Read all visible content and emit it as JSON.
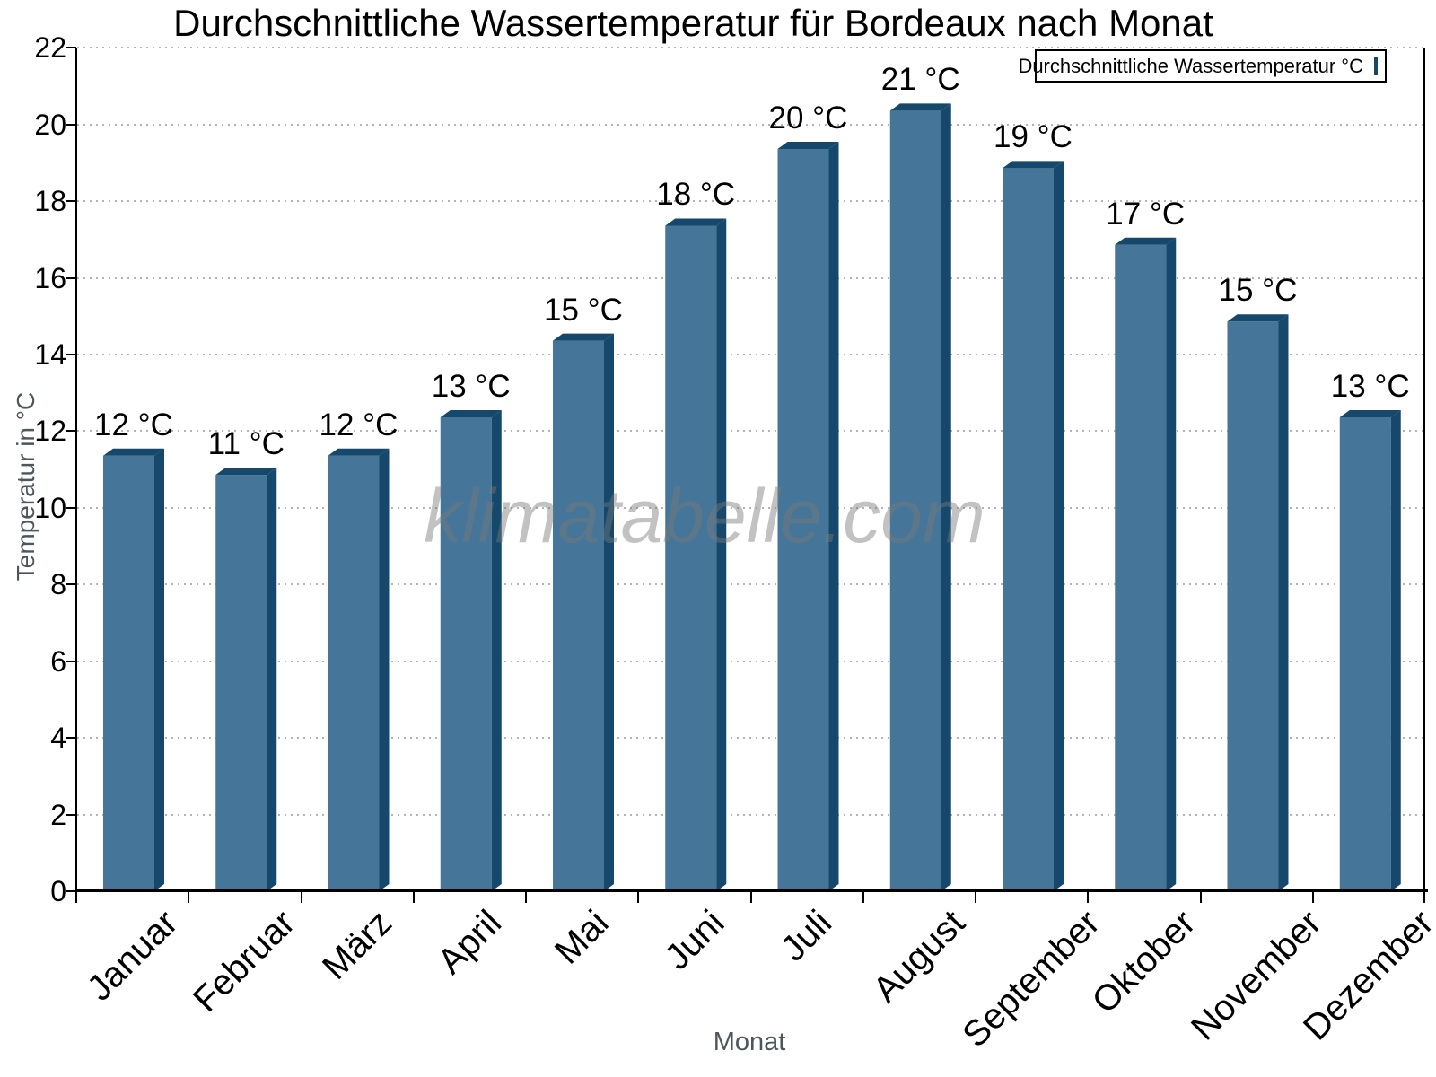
{
  "page": {
    "background": "#ffffff"
  },
  "chart_data": {
    "type": "bar",
    "title": "Durchschnittliche Wassertemperatur für Bordeaux nach Monat",
    "xlabel": "Monat",
    "ylabel": "Temperatur in °C",
    "categories": [
      "Januar",
      "Februar",
      "März",
      "April",
      "Mai",
      "Juni",
      "Juli",
      "August",
      "September",
      "Oktober",
      "November",
      "Dezember"
    ],
    "series": [
      {
        "name": "Durchschnittliche Wassertemperatur °C",
        "values": [
          12,
          11,
          12,
          13,
          15,
          18,
          20,
          21,
          19,
          17,
          15,
          13
        ],
        "value_labels": [
          "12 °C",
          "11 °C",
          "12 °C",
          "13 °C",
          "15 °C",
          "18 °C",
          "20 °C",
          "21 °C",
          "19 °C",
          "17 °C",
          "15 °C",
          "13 °C"
        ],
        "bar_top_c": [
          11.55,
          11.05,
          11.55,
          12.55,
          14.55,
          17.55,
          19.55,
          20.55,
          19.05,
          17.05,
          15.05,
          12.55
        ]
      }
    ],
    "ylim": [
      0,
      22
    ],
    "ytick_step": 2,
    "yticks": [
      0,
      2,
      4,
      6,
      8,
      10,
      12,
      14,
      16,
      18,
      20,
      22
    ],
    "grid": "horizontal-dotted",
    "legend": {
      "position": "top-right",
      "label": "Durchschnittliche Wassertemperatur °C"
    },
    "watermark": "klimatabelle.com",
    "colors": {
      "bar_face": "#45769A",
      "bar_depth": "#16486C",
      "axis": "#000000",
      "grid": "#b3b3b3",
      "axis_title": "#4d565c",
      "text": "#000000",
      "watermark": "rgba(120,120,120,0.45)"
    }
  }
}
